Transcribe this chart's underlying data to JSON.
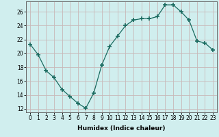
{
  "x": [
    0,
    1,
    2,
    3,
    4,
    5,
    6,
    7,
    8,
    9,
    10,
    11,
    12,
    13,
    14,
    15,
    16,
    17,
    18,
    19,
    20,
    21,
    22,
    23
  ],
  "y": [
    21.3,
    19.8,
    17.5,
    16.5,
    14.8,
    13.8,
    12.8,
    12.1,
    14.3,
    18.3,
    21.0,
    22.5,
    24.0,
    24.8,
    25.0,
    25.0,
    25.3,
    27.0,
    27.0,
    26.0,
    24.8,
    21.8,
    21.5,
    20.5
  ],
  "line_color": "#1a6b60",
  "marker": "+",
  "marker_size": 4,
  "bg_color": "#d0eeee",
  "grid_color": "#c8b8b8",
  "xlabel": "Humidex (Indice chaleur)",
  "xlim": [
    -0.5,
    23.5
  ],
  "ylim": [
    11.5,
    27.5
  ],
  "yticks": [
    12,
    14,
    16,
    18,
    20,
    22,
    24,
    26
  ],
  "xticks": [
    0,
    1,
    2,
    3,
    4,
    5,
    6,
    7,
    8,
    9,
    10,
    11,
    12,
    13,
    14,
    15,
    16,
    17,
    18,
    19,
    20,
    21,
    22,
    23
  ],
  "label_fontsize": 6.5,
  "tick_fontsize": 5.5
}
